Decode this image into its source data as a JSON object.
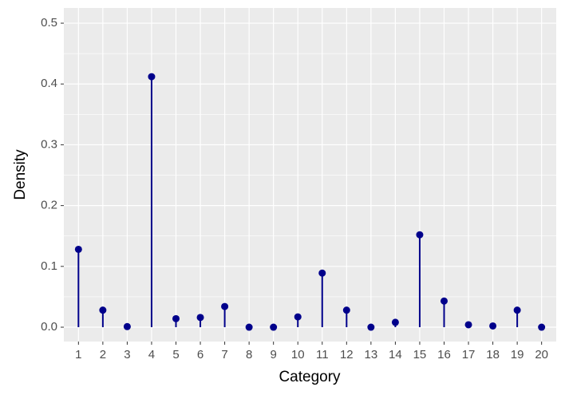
{
  "chart_data": {
    "type": "lollipop",
    "x_label": "Category",
    "y_label": "Density",
    "categories": [
      "1",
      "2",
      "3",
      "4",
      "5",
      "6",
      "7",
      "8",
      "9",
      "10",
      "11",
      "12",
      "13",
      "14",
      "15",
      "16",
      "17",
      "18",
      "19",
      "20"
    ],
    "values": [
      0.128,
      0.028,
      0.001,
      0.412,
      0.014,
      0.016,
      0.034,
      0,
      0,
      0.017,
      0.089,
      0.028,
      0,
      0.008,
      0.152,
      0.043,
      0.004,
      0.002,
      0.028,
      0
    ],
    "color": "#00008b",
    "ylim": [
      -0.0236,
      0.525
    ],
    "yticks": [
      {
        "value": 0,
        "label": "0.0"
      },
      0.1,
      0.2,
      0.3,
      0.4,
      0.5
    ],
    "grid": true
  }
}
